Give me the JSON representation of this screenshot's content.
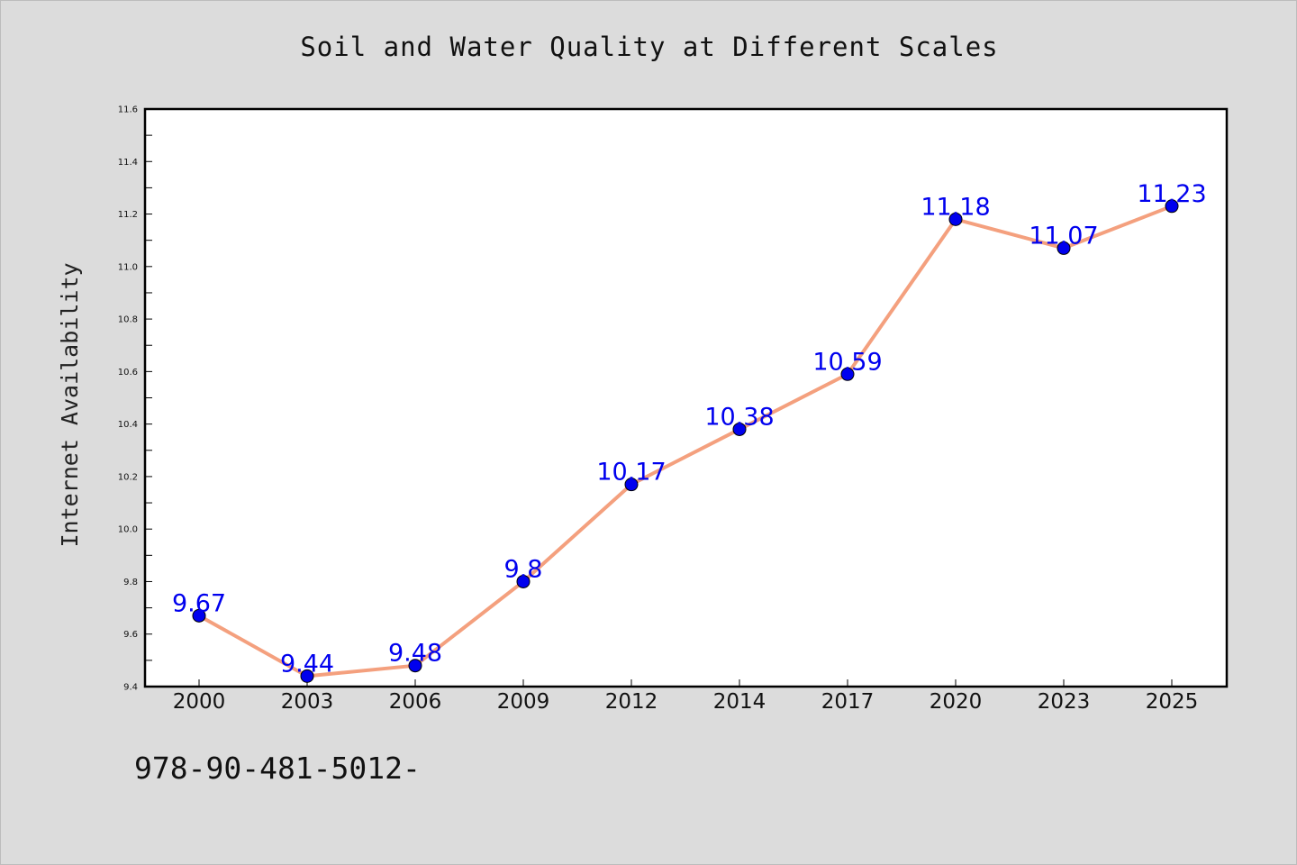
{
  "chart_data": {
    "type": "line",
    "title": "Soil and Water Quality at Different Scales",
    "xlabel": "",
    "ylabel": "Internet Availability",
    "categories": [
      "2000",
      "2003",
      "2006",
      "2009",
      "2012",
      "2014",
      "2017",
      "2020",
      "2023",
      "2025"
    ],
    "series": [
      {
        "values": [
          9.67,
          9.44,
          9.48,
          9.8,
          10.17,
          10.38,
          10.59,
          11.18,
          11.07,
          11.23
        ],
        "data_labels": [
          "9.67",
          "9.44",
          "9.48",
          "9.8",
          "10.17",
          "10.38",
          "10.59",
          "11.18",
          "11.07",
          "11.23"
        ]
      }
    ],
    "ylim": [
      9.4,
      11.6
    ],
    "yticks": [
      "9.4",
      "9.6",
      "9.8",
      "10.0",
      "10.2",
      "10.4",
      "10.6",
      "10.8",
      "11.0",
      "11.2",
      "11.4",
      "11.6"
    ],
    "grid": false,
    "legend": "none",
    "colors": {
      "line": "#f4a07e",
      "marker": "#0000ee",
      "marker_edge": "#000000",
      "data_label": "#0000ee",
      "background": "#dcdcdc",
      "plot_background": "#ffffff"
    }
  },
  "footer": {
    "text": "978-90-481-5012-"
  }
}
